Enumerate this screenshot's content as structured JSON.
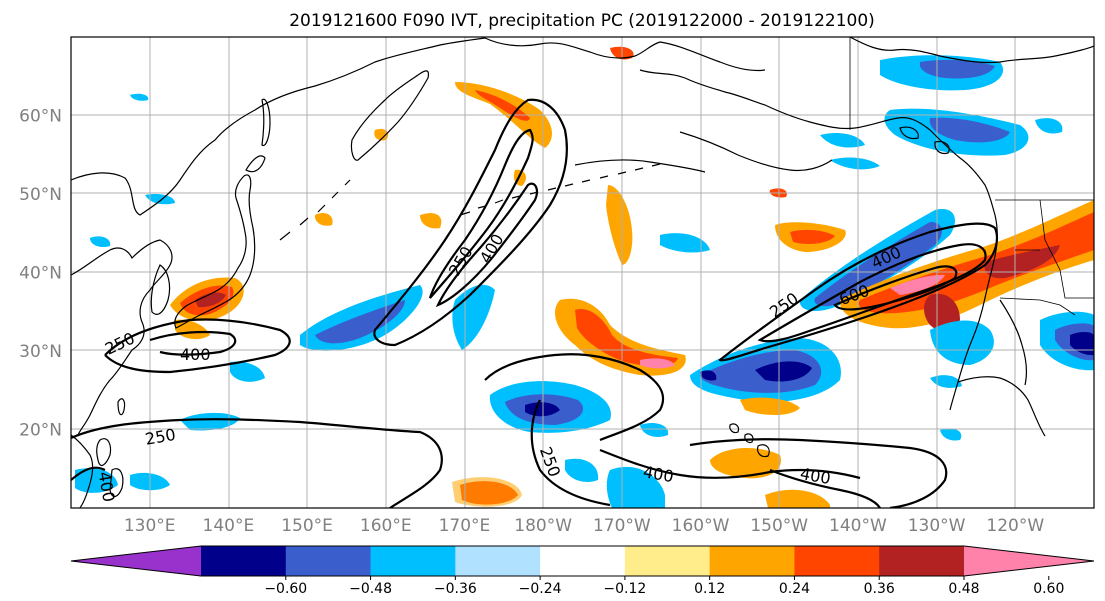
{
  "title": "2019121600 F090 IVT, precipitation PC (2019122000 - 2019122100)",
  "lat_ticks": [
    {
      "label": "60°N",
      "lat": 60
    },
    {
      "label": "50°N",
      "lat": 50
    },
    {
      "label": "40°N",
      "lat": 40
    },
    {
      "label": "30°N",
      "lat": 30
    },
    {
      "label": "20°N",
      "lat": 20
    }
  ],
  "lon_ticks": [
    {
      "label": "130°E",
      "lon": 130
    },
    {
      "label": "140°E",
      "lon": 140
    },
    {
      "label": "150°E",
      "lon": 150
    },
    {
      "label": "160°E",
      "lon": 160
    },
    {
      "label": "170°E",
      "lon": 170
    },
    {
      "label": "180°W",
      "lon": 180
    },
    {
      "label": "170°W",
      "lon": 190
    },
    {
      "label": "160°W",
      "lon": 200
    },
    {
      "label": "150°W",
      "lon": 210
    },
    {
      "label": "140°W",
      "lon": 220
    },
    {
      "label": "130°W",
      "lon": 230
    },
    {
      "label": "120°W",
      "lon": 240
    }
  ],
  "map_extent": {
    "lon_min": 120,
    "lon_max": 250,
    "lat_min": 10,
    "lat_max": 70
  },
  "colorbar": {
    "colors": [
      "#9932cc",
      "#00008b",
      "#3a5fcd",
      "#00bfff",
      "#b0e2ff",
      "#ffffff",
      "#ffec8b",
      "#ffa500",
      "#ff4500",
      "#b22222",
      "#ff82ab"
    ],
    "labels": [
      "−0.60",
      "−0.48",
      "−0.36",
      "−0.24",
      "−0.12",
      "0.12",
      "0.24",
      "0.36",
      "0.48",
      "0.60"
    ],
    "bounds": [
      -0.6,
      -0.48,
      -0.36,
      -0.24,
      -0.12,
      0.12,
      0.24,
      0.36,
      0.48,
      0.6
    ]
  },
  "contour_labels": [
    "250",
    "400",
    "250",
    "400",
    "250",
    "400",
    "250",
    "400",
    "600",
    "250",
    "400",
    "400"
  ],
  "contour_levels": [
    250,
    400,
    600
  ]
}
